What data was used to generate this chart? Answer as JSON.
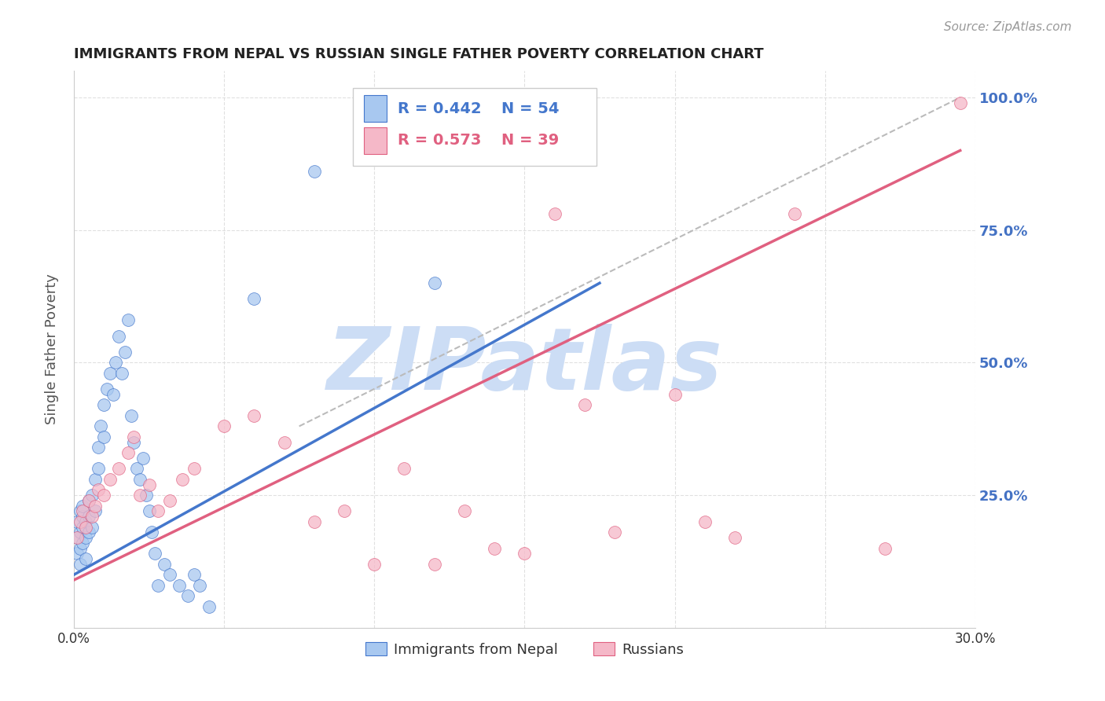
{
  "title": "IMMIGRANTS FROM NEPAL VS RUSSIAN SINGLE FATHER POVERTY CORRELATION CHART",
  "source": "Source: ZipAtlas.com",
  "ylabel": "Single Father Poverty",
  "xlim": [
    0.0,
    0.3
  ],
  "ylim": [
    0.0,
    1.05
  ],
  "xticks": [
    0.0,
    0.05,
    0.1,
    0.15,
    0.2,
    0.25,
    0.3
  ],
  "xtick_labels": [
    "0.0%",
    "",
    "",
    "",
    "",
    "",
    "30.0%"
  ],
  "ytick_vals": [
    0.0,
    0.25,
    0.5,
    0.75,
    1.0
  ],
  "ytick_labels_right": [
    "",
    "25.0%",
    "50.0%",
    "75.0%",
    "100.0%"
  ],
  "blue_R": 0.442,
  "blue_N": 54,
  "pink_R": 0.573,
  "pink_N": 39,
  "blue_color": "#a8c8f0",
  "pink_color": "#f5b8c8",
  "blue_line_color": "#4477cc",
  "pink_line_color": "#e06080",
  "ref_line_color": "#bbbbbb",
  "legend_label_blue": "Immigrants from Nepal",
  "legend_label_pink": "Russians",
  "watermark": "ZIPatlas",
  "watermark_color": "#ccddf5",
  "title_color": "#222222",
  "tick_color_right": "#4472c4",
  "grid_color": "#dddddd",
  "blue_scatter_x": [
    0.001,
    0.001,
    0.001,
    0.002,
    0.002,
    0.002,
    0.002,
    0.003,
    0.003,
    0.003,
    0.003,
    0.004,
    0.004,
    0.004,
    0.005,
    0.005,
    0.005,
    0.006,
    0.006,
    0.007,
    0.007,
    0.008,
    0.008,
    0.009,
    0.01,
    0.01,
    0.011,
    0.012,
    0.013,
    0.014,
    0.015,
    0.016,
    0.017,
    0.018,
    0.019,
    0.02,
    0.021,
    0.022,
    0.023,
    0.024,
    0.025,
    0.026,
    0.027,
    0.028,
    0.03,
    0.032,
    0.035,
    0.038,
    0.04,
    0.042,
    0.045,
    0.06,
    0.08,
    0.12
  ],
  "blue_scatter_y": [
    0.2,
    0.17,
    0.14,
    0.22,
    0.18,
    0.15,
    0.12,
    0.21,
    0.19,
    0.16,
    0.23,
    0.2,
    0.17,
    0.13,
    0.24,
    0.21,
    0.18,
    0.25,
    0.19,
    0.28,
    0.22,
    0.3,
    0.34,
    0.38,
    0.36,
    0.42,
    0.45,
    0.48,
    0.44,
    0.5,
    0.55,
    0.48,
    0.52,
    0.58,
    0.4,
    0.35,
    0.3,
    0.28,
    0.32,
    0.25,
    0.22,
    0.18,
    0.14,
    0.08,
    0.12,
    0.1,
    0.08,
    0.06,
    0.1,
    0.08,
    0.04,
    0.62,
    0.86,
    0.65
  ],
  "pink_scatter_x": [
    0.001,
    0.002,
    0.003,
    0.004,
    0.005,
    0.006,
    0.007,
    0.008,
    0.01,
    0.012,
    0.015,
    0.018,
    0.02,
    0.022,
    0.025,
    0.028,
    0.032,
    0.036,
    0.04,
    0.05,
    0.06,
    0.07,
    0.08,
    0.09,
    0.1,
    0.11,
    0.12,
    0.13,
    0.14,
    0.15,
    0.16,
    0.17,
    0.18,
    0.2,
    0.21,
    0.22,
    0.24,
    0.27,
    0.295
  ],
  "pink_scatter_y": [
    0.17,
    0.2,
    0.22,
    0.19,
    0.24,
    0.21,
    0.23,
    0.26,
    0.25,
    0.28,
    0.3,
    0.33,
    0.36,
    0.25,
    0.27,
    0.22,
    0.24,
    0.28,
    0.3,
    0.38,
    0.4,
    0.35,
    0.2,
    0.22,
    0.12,
    0.3,
    0.12,
    0.22,
    0.15,
    0.14,
    0.78,
    0.42,
    0.18,
    0.44,
    0.2,
    0.17,
    0.78,
    0.15,
    0.99
  ],
  "blue_line_x": [
    0.0,
    0.175
  ],
  "blue_line_y": [
    0.1,
    0.65
  ],
  "pink_line_x": [
    0.0,
    0.295
  ],
  "pink_line_y": [
    0.09,
    0.9
  ],
  "ref_line_x": [
    0.075,
    0.295
  ],
  "ref_line_y": [
    0.38,
    1.0
  ]
}
